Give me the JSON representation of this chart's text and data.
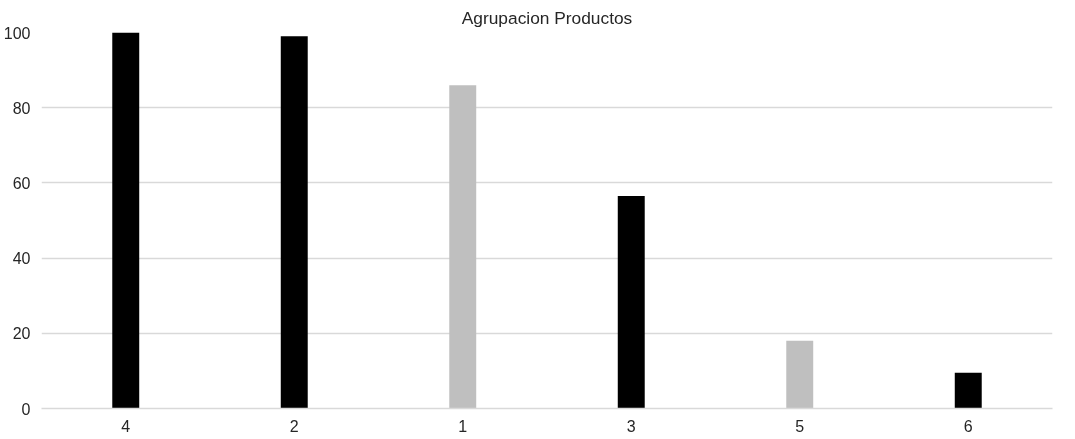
{
  "chart_data": {
    "type": "bar",
    "title": "Agrupacion Productos",
    "categories": [
      "4",
      "2",
      "1",
      "3",
      "5",
      "6"
    ],
    "values": [
      100,
      99,
      86,
      56.5,
      18,
      9.5
    ],
    "colors": [
      "#000000",
      "#000000",
      "#bfbfbf",
      "#000000",
      "#bfbfbf",
      "#000000"
    ],
    "ylim": [
      0,
      100
    ],
    "yticks": [
      0,
      20,
      40,
      60,
      80,
      100
    ],
    "grid": "y"
  }
}
